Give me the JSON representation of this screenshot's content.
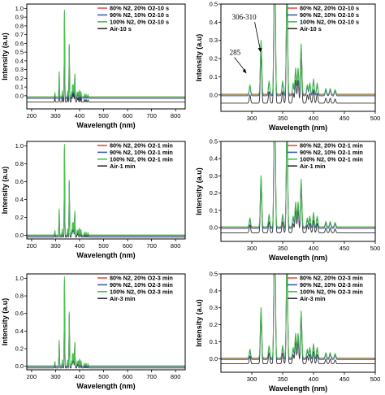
{
  "chart_data": [
    {
      "type": "line",
      "title": "",
      "xlabel": "Wavelength (nm)",
      "ylabel": "Intensity (a.u)",
      "xlim": [
        180,
        840
      ],
      "ylim": [
        -0.15,
        1.05
      ],
      "xticks": [
        200,
        300,
        400,
        500,
        600,
        700,
        800
      ],
      "yticks": [
        0.0,
        0.1,
        0.2,
        0.3,
        0.4,
        0.5,
        0.6,
        0.7,
        0.8,
        0.9,
        1.0
      ],
      "legend_position": "top-right",
      "series": [
        {
          "name": "80% N2, 20% O2-10 s",
          "color": "#e05050",
          "baseline": -0.02,
          "peak_scale": 1.0
        },
        {
          "name": "90% N2, 10% O2-10 s",
          "color": "#3f5fb0",
          "baseline": -0.03,
          "peak_scale": 0.98
        },
        {
          "name": "100% N2, 0% O2-10 s",
          "color": "#44c44a",
          "baseline": -0.01,
          "peak_scale": 1.0
        },
        {
          "name": "Air-10 s",
          "color": "#303030",
          "baseline": -0.07,
          "peak_scale": 0.95
        }
      ],
      "annotations": []
    },
    {
      "type": "line",
      "title": "",
      "xlabel": "Wavelength (nm)",
      "ylabel": "Intensity (a.u)",
      "xlim": [
        250,
        500
      ],
      "ylim": [
        -0.09,
        0.5
      ],
      "xticks": [
        300,
        350,
        400,
        450,
        500
      ],
      "yticks": [
        0.0,
        0.1,
        0.2,
        0.3,
        0.4,
        0.5
      ],
      "legend_position": "top-right",
      "series": [
        {
          "name": "80% N2, 20% O2-10 s",
          "color": "#e05050",
          "baseline": 0.0,
          "peak_scale": 1.0
        },
        {
          "name": "90% N2, 10% O2-10 s",
          "color": "#3f5fb0",
          "baseline": -0.005,
          "peak_scale": 0.98
        },
        {
          "name": "100% N2, 0% O2-10 s",
          "color": "#44c44a",
          "baseline": 0.005,
          "peak_scale": 1.03
        },
        {
          "name": "Air-10 s",
          "color": "#303030",
          "baseline": -0.045,
          "peak_scale": 0.9
        }
      ],
      "annotations": [
        {
          "text": "306-310",
          "x": 310,
          "y": 0.2
        },
        {
          "text": "285",
          "x": 285,
          "y": 0.1
        }
      ]
    },
    {
      "type": "line",
      "title": "",
      "xlabel": "Wavelength (nm)",
      "ylabel": "Intensity (a.u)",
      "xlim": [
        180,
        840
      ],
      "ylim": [
        -0.04,
        1.05
      ],
      "xticks": [
        200,
        300,
        400,
        500,
        600,
        700,
        800
      ],
      "yticks": [
        0.0,
        0.2,
        0.4,
        0.6,
        0.8,
        1.0
      ],
      "legend_position": "top-right",
      "series": [
        {
          "name": "80% N2, 20% O2-1 min",
          "color": "#e05050",
          "baseline": 0.0,
          "peak_scale": 1.0
        },
        {
          "name": "90% N2, 10% O2-1 min",
          "color": "#3f5fb0",
          "baseline": -0.005,
          "peak_scale": 0.98
        },
        {
          "name": "100% N2, 0% O2-1 min",
          "color": "#44c44a",
          "baseline": 0.005,
          "peak_scale": 1.02
        },
        {
          "name": "Air-1 min",
          "color": "#303030",
          "baseline": -0.02,
          "peak_scale": 0.96
        }
      ],
      "annotations": []
    },
    {
      "type": "line",
      "title": "",
      "xlabel": "Wavelength (nm)",
      "ylabel": "Intensity (a.u)",
      "xlim": [
        250,
        500
      ],
      "ylim": [
        -0.08,
        0.5
      ],
      "xticks": [
        300,
        350,
        400,
        450,
        500
      ],
      "yticks": [
        0.0,
        0.1,
        0.2,
        0.3,
        0.4,
        0.5
      ],
      "legend_position": "top-right",
      "series": [
        {
          "name": "80% N2, 20% O2-1 min",
          "color": "#e05050",
          "baseline": 0.0,
          "peak_scale": 1.0
        },
        {
          "name": "90% N2, 10% O2-1 min",
          "color": "#3f5fb0",
          "baseline": -0.005,
          "peak_scale": 0.98
        },
        {
          "name": "100% N2, 0% O2-1 min",
          "color": "#44c44a",
          "baseline": 0.005,
          "peak_scale": 1.03
        },
        {
          "name": "Air-1 min",
          "color": "#303030",
          "baseline": -0.03,
          "peak_scale": 0.9
        }
      ],
      "annotations": []
    },
    {
      "type": "line",
      "title": "",
      "xlabel": "Wavelength (nm)",
      "ylabel": "Intensity (a.u)",
      "xlim": [
        180,
        840
      ],
      "ylim": [
        -0.04,
        1.05
      ],
      "xticks": [
        200,
        300,
        400,
        500,
        600,
        700,
        800
      ],
      "yticks": [
        0.0,
        0.2,
        0.4,
        0.6,
        0.8,
        1.0
      ],
      "legend_position": "top-right",
      "series": [
        {
          "name": "80% N2, 20% O2-3 min",
          "color": "#e05050",
          "baseline": 0.0,
          "peak_scale": 1.0
        },
        {
          "name": "90% N2, 10% O2-3 min",
          "color": "#3f5fb0",
          "baseline": -0.005,
          "peak_scale": 0.98
        },
        {
          "name": "100% N2, 0% O2-3 min",
          "color": "#44c44a",
          "baseline": 0.005,
          "peak_scale": 1.02
        },
        {
          "name": "Air-3 min",
          "color": "#303030",
          "baseline": -0.02,
          "peak_scale": 0.96
        }
      ],
      "annotations": []
    },
    {
      "type": "line",
      "title": "",
      "xlabel": "Wavelength (nm)",
      "ylabel": "Intensity (a.u)",
      "xlim": [
        250,
        500
      ],
      "ylim": [
        -0.08,
        0.5
      ],
      "xticks": [
        300,
        350,
        400,
        450,
        500
      ],
      "yticks": [
        0.0,
        0.1,
        0.2,
        0.3,
        0.4,
        0.5
      ],
      "legend_position": "top-right",
      "series": [
        {
          "name": "80% N2, 20% O2-3 min",
          "color": "#e05050",
          "baseline": 0.0,
          "peak_scale": 1.0
        },
        {
          "name": "90% N2, 10% O2-3 min",
          "color": "#3f5fb0",
          "baseline": -0.005,
          "peak_scale": 0.98
        },
        {
          "name": "100% N2, 0% O2-3 min",
          "color": "#44c44a",
          "baseline": 0.005,
          "peak_scale": 1.03
        },
        {
          "name": "Air-3 min",
          "color": "#303030",
          "baseline": -0.03,
          "peak_scale": 0.9
        }
      ],
      "annotations": []
    }
  ],
  "peaks": [
    {
      "x": 297,
      "h": 0.05
    },
    {
      "x": 315,
      "h": 0.29
    },
    {
      "x": 328,
      "h": 0.07
    },
    {
      "x": 337,
      "h": 1.0
    },
    {
      "x": 350,
      "h": 0.07
    },
    {
      "x": 357,
      "h": 0.62
    },
    {
      "x": 367,
      "h": 0.06
    },
    {
      "x": 371,
      "h": 0.14
    },
    {
      "x": 375,
      "h": 0.14
    },
    {
      "x": 380,
      "h": 0.27
    },
    {
      "x": 390,
      "h": 0.05
    },
    {
      "x": 394,
      "h": 0.06
    },
    {
      "x": 400,
      "h": 0.08
    },
    {
      "x": 406,
      "h": 0.06
    },
    {
      "x": 420,
      "h": 0.03
    },
    {
      "x": 427,
      "h": 0.03
    },
    {
      "x": 435,
      "h": 0.025
    }
  ]
}
